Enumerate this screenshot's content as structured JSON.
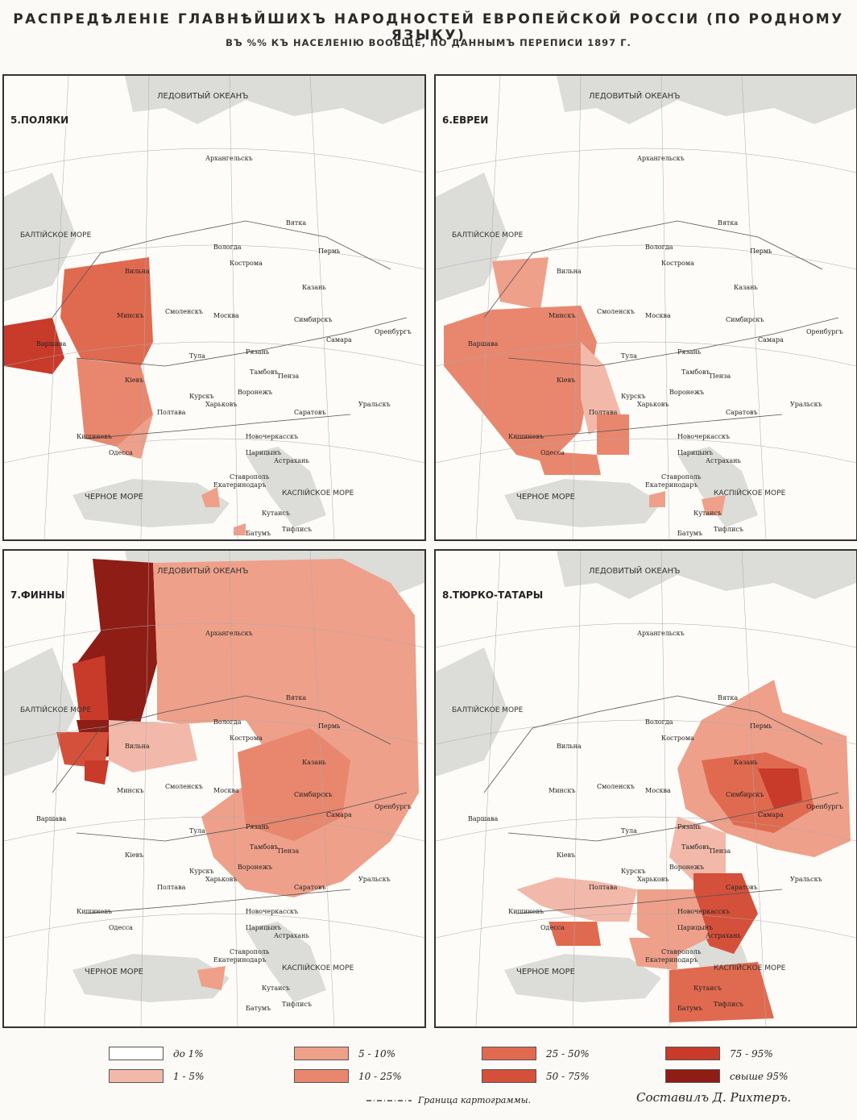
{
  "title": "РАСПРЕДѢЛЕНІЕ ГЛАВНѢЙШИХЪ НАРОДНОСТЕЙ ЕВРОПЕЙСКОЙ РОССІИ (ПО РОДНОМУ ЯЗЫКУ)",
  "subtitle": "ВЪ %% КЪ НАСЕЛЕНІЮ ВООБЩЕ, ПО ДАННЫМЪ ПЕРЕПИСИ 1897 Г.",
  "colors": {
    "c0": "#ffffff",
    "c1": "#f2b9aa",
    "c2": "#eea08a",
    "c3": "#e8876e",
    "c4": "#e06a50",
    "c5": "#d5503a",
    "c6": "#c83a2a",
    "c7": "#8e1d16",
    "sea": "#dcdcd8",
    "land": "#fdfcf8"
  },
  "panels": [
    {
      "label": "5.ПОЛЯКИ",
      "sea_labels": [
        "ЛЕДОВИТЫЙ ОКЕАНЪ",
        "ЧЕРНОЕ МОРЕ",
        "КАСПІЙСКОЕ МОРЕ",
        "БАЛТІЙСКОЕ МОРЕ"
      ],
      "cities": [
        "Варшава",
        "Вильна",
        "Минскъ",
        "Кіевъ",
        "Москва",
        "Рязань",
        "Тула",
        "Тамбовъ",
        "Пенза",
        "Казань",
        "Самара",
        "Оренбургъ",
        "Уральскъ",
        "Саратовъ",
        "Царицынъ",
        "Астрахань",
        "Харьковъ",
        "Полтава",
        "Одесса",
        "Кишиневъ",
        "Ставрополь",
        "Тифлисъ",
        "Батумъ",
        "Архангельскъ",
        "Вологда",
        "Пермь",
        "Вятка",
        "Кострома",
        "Смоленскъ",
        "Курскъ",
        "Воронежъ",
        "Симбирскъ",
        "Новочеркасскъ",
        "Екатеринодаръ",
        "Кутаисъ"
      ]
    },
    {
      "label": "6.ЕВРЕИ",
      "sea_labels": [
        "ЛЕДОВИТЫЙ ОКЕАНЪ",
        "ЧЕРНОЕ МОРЕ",
        "КАСПІЙСКОЕ МОРЕ",
        "БАЛТІЙСКОЕ МОРЕ"
      ],
      "cities": [
        "Варшава",
        "Вильна",
        "Минскъ",
        "Кіевъ",
        "Москва",
        "Рязань",
        "Тула",
        "Тамбовъ",
        "Пенза",
        "Казань",
        "Самара",
        "Оренбургъ",
        "Уральскъ",
        "Саратовъ",
        "Царицынъ",
        "Астрахань",
        "Харьковъ",
        "Полтава",
        "Одесса",
        "Кишиневъ",
        "Ставрополь",
        "Тифлисъ",
        "Батумъ",
        "Архангельскъ",
        "Вологда",
        "Пермь",
        "Вятка",
        "Кострома",
        "Смоленскъ",
        "Курскъ",
        "Воронежъ",
        "Симбирскъ",
        "Новочеркасскъ",
        "Екатеринодаръ",
        "Кутаисъ"
      ]
    },
    {
      "label": "7.ФИННЫ",
      "sea_labels": [
        "ЛЕДОВИТЫЙ ОКЕАНЪ",
        "ЧЕРНОЕ МОРЕ",
        "КАСПІЙСКОЕ МОРЕ",
        "БАЛТІЙСКОЕ МОРЕ"
      ],
      "cities": [
        "Варшава",
        "Вильна",
        "Минскъ",
        "Кіевъ",
        "Москва",
        "Рязань",
        "Тула",
        "Тамбовъ",
        "Пенза",
        "Казань",
        "Самара",
        "Оренбургъ",
        "Уральскъ",
        "Саратовъ",
        "Царицынъ",
        "Астрахань",
        "Харьковъ",
        "Полтава",
        "Одесса",
        "Кишиневъ",
        "Ставрополь",
        "Тифлисъ",
        "Батумъ",
        "Архангельскъ",
        "Вологда",
        "Пермь",
        "Вятка",
        "Кострома",
        "Смоленскъ",
        "Курскъ",
        "Воронежъ",
        "Симбирскъ",
        "Новочеркасскъ",
        "Екатеринодаръ",
        "Кутаисъ"
      ]
    },
    {
      "label": "8.ТЮРКО-ТАТАРЫ",
      "sea_labels": [
        "ЛЕДОВИТЫЙ ОКЕАНЪ",
        "ЧЕРНОЕ МОРЕ",
        "КАСПІЙСКОЕ МОРЕ",
        "БАЛТІЙСКОЕ МОРЕ"
      ],
      "cities": [
        "Варшава",
        "Вильна",
        "Минскъ",
        "Кіевъ",
        "Москва",
        "Рязань",
        "Тула",
        "Тамбовъ",
        "Пенза",
        "Казань",
        "Самара",
        "Оренбургъ",
        "Уральскъ",
        "Саратовъ",
        "Царицынъ",
        "Астрахань",
        "Харьковъ",
        "Полтава",
        "Одесса",
        "Кишиневъ",
        "Ставрополь",
        "Тифлисъ",
        "Батумъ",
        "Архангельскъ",
        "Вологда",
        "Пермь",
        "Вятка",
        "Кострома",
        "Смоленскъ",
        "Курскъ",
        "Воронежъ",
        "Симбирскъ",
        "Новочеркасскъ",
        "Екатеринодаръ",
        "Кутаисъ"
      ]
    }
  ],
  "legend": [
    {
      "label": "до 1%",
      "color": "#ffffff"
    },
    {
      "label": "1 - 5%",
      "color": "#f2b9aa"
    },
    {
      "label": "5 - 10%",
      "color": "#eea08a"
    },
    {
      "label": "10 - 25%",
      "color": "#e8876e"
    },
    {
      "label": "25 - 50%",
      "color": "#e06a50"
    },
    {
      "label": "50 - 75%",
      "color": "#d5503a"
    },
    {
      "label": "75 - 95%",
      "color": "#c83a2a"
    },
    {
      "label": "свыше 95%",
      "color": "#8e1d16"
    }
  ],
  "boundary_note": "Граница картограммы.",
  "author": "Составилъ Д. Рихтеръ."
}
